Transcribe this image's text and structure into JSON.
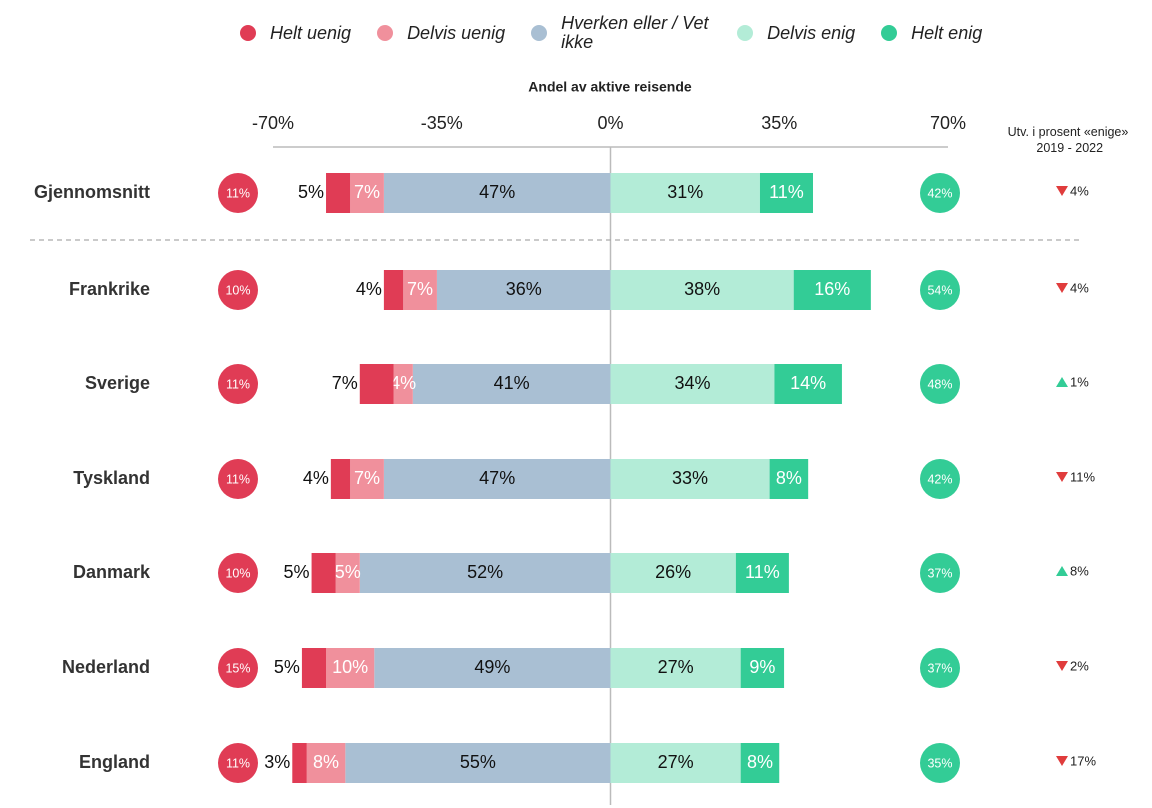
{
  "chart_data": {
    "type": "diverging_bar",
    "x_label": "Andel av aktive reisende",
    "xlim": [
      -70,
      70
    ],
    "xticks": [
      {
        "value": -70,
        "label": "-70%"
      },
      {
        "value": -35,
        "label": "-35%"
      },
      {
        "value": 0,
        "label": "0%"
      },
      {
        "value": 35,
        "label": "35%"
      },
      {
        "value": 70,
        "label": "70%"
      }
    ],
    "categories": [
      "Gjennomsnitt",
      "Frankrike",
      "Sverige",
      "Tyskland",
      "Danmark",
      "Nederland",
      "England"
    ],
    "series": [
      {
        "name": "Helt uenig",
        "color": "#e03c55",
        "side": "left",
        "label_color": "#111",
        "label_outside": true,
        "values": [
          5,
          4,
          7,
          4,
          5,
          5,
          3
        ],
        "value_labels": [
          "5%",
          "4%",
          "7%",
          "4%",
          "5%",
          "5%",
          "3%"
        ]
      },
      {
        "name": "Delvis uenig",
        "color": "#f0909c",
        "side": "left",
        "label_color": "#fff",
        "values": [
          7,
          7,
          4,
          7,
          5,
          10,
          8
        ],
        "value_labels": [
          "7%",
          "7%",
          "4%",
          "7%",
          "5%",
          "10%",
          "8%"
        ]
      },
      {
        "name": "Hverken eller / Vet ikke",
        "color": "#a9bfd3",
        "side": "left",
        "label_color": "#111",
        "values": [
          47,
          36,
          41,
          47,
          52,
          49,
          55
        ],
        "value_labels": [
          "47%",
          "36%",
          "41%",
          "47%",
          "52%",
          "49%",
          "55%"
        ]
      },
      {
        "name": "Delvis enig",
        "color": "#b3ecd7",
        "side": "right",
        "label_color": "#111",
        "values": [
          31,
          38,
          34,
          33,
          26,
          27,
          27
        ],
        "value_labels": [
          "31%",
          "38%",
          "34%",
          "33%",
          "26%",
          "27%",
          "27%"
        ]
      },
      {
        "name": "Helt enig",
        "color": "#33cc96",
        "side": "right",
        "label_color": "#fff",
        "values": [
          11,
          16,
          14,
          8,
          11,
          9,
          8
        ],
        "value_labels": [
          "11%",
          "16%",
          "14%",
          "8%",
          "11%",
          "9%",
          "8%"
        ]
      }
    ],
    "disagree_total": {
      "color": "#e03c55",
      "values": [
        11,
        10,
        11,
        11,
        10,
        15,
        11
      ],
      "value_labels": [
        "11%",
        "10%",
        "11%",
        "11%",
        "10%",
        "15%",
        "11%"
      ]
    },
    "agree_total": {
      "color": "#33cc96",
      "values": [
        42,
        54,
        48,
        42,
        37,
        37,
        35
      ],
      "value_labels": [
        "42%",
        "54%",
        "48%",
        "42%",
        "37%",
        "37%",
        "35%"
      ]
    },
    "change": {
      "title": "Utv. i prosent «enige» 2019 - 2022",
      "up_color": "#33cc96",
      "down_color": "#e03c3c",
      "values": [
        -4,
        -4,
        1,
        -11,
        8,
        -2,
        -17
      ],
      "value_labels": [
        "4%",
        "4%",
        "1%",
        "11%",
        "8%",
        "2%",
        "17%"
      ]
    }
  }
}
